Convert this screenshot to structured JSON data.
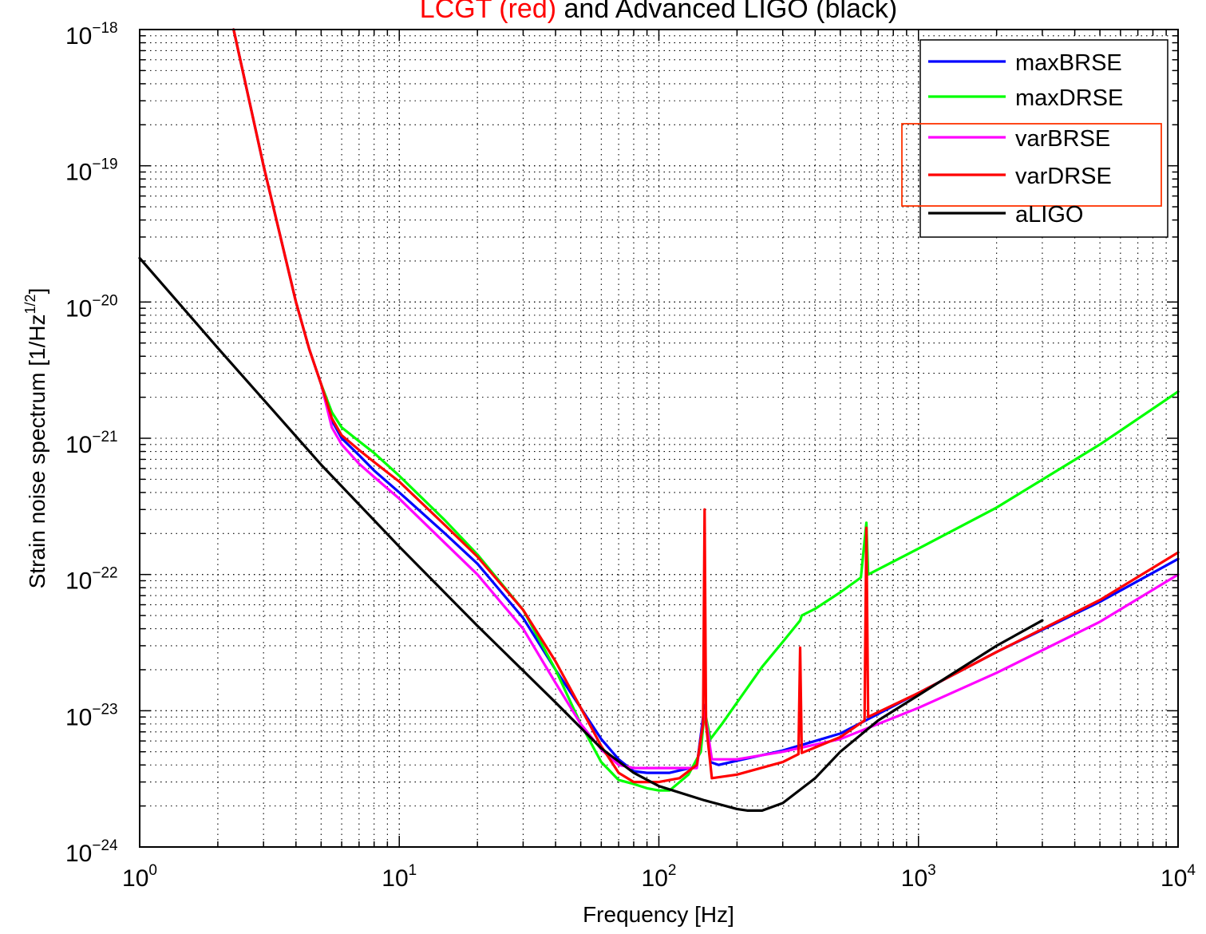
{
  "chart_data": {
    "type": "line",
    "title": {
      "part1": "LCGT (red)",
      "part1_color": "#ff0000",
      "part2": " and Advanced LIGO (black)",
      "part2_color": "#000000"
    },
    "xlabel": "Frequency [Hz]",
    "ylabel": "Strain noise spectrum [1/Hz",
    "ylabel_exp": "1/2",
    "ylabel_close": "]",
    "xscale": "log",
    "yscale": "log",
    "xlim": [
      1,
      10000
    ],
    "ylim": [
      1e-24,
      1e-18
    ],
    "grid": true,
    "legend_position": "top-right",
    "x_ticks": [
      {
        "base": "10",
        "exp": "0"
      },
      {
        "base": "10",
        "exp": "1"
      },
      {
        "base": "10",
        "exp": "2"
      },
      {
        "base": "10",
        "exp": "3"
      },
      {
        "base": "10",
        "exp": "4"
      }
    ],
    "y_ticks": [
      {
        "base": "10",
        "exp": "−24"
      },
      {
        "base": "10",
        "exp": "−23"
      },
      {
        "base": "10",
        "exp": "−22"
      },
      {
        "base": "10",
        "exp": "−21"
      },
      {
        "base": "10",
        "exp": "−20"
      },
      {
        "base": "10",
        "exp": "−19"
      },
      {
        "base": "10",
        "exp": "−18"
      }
    ],
    "series": [
      {
        "name": "maxBRSE",
        "color": "#0000ff",
        "points": [
          [
            2.3,
            1e-18
          ],
          [
            3,
            1e-19
          ],
          [
            4,
            1e-20
          ],
          [
            4.5,
            4.5e-21
          ],
          [
            5,
            2.5e-21
          ],
          [
            5.5,
            1.35e-21
          ],
          [
            6,
            1e-21
          ],
          [
            7,
            7.5e-22
          ],
          [
            8,
            5.8e-22
          ],
          [
            10,
            4e-22
          ],
          [
            15,
            2e-22
          ],
          [
            20,
            1.2e-22
          ],
          [
            30,
            4.8e-23
          ],
          [
            40,
            2e-23
          ],
          [
            50,
            1.05e-23
          ],
          [
            60,
            6.2e-24
          ],
          [
            70,
            4.4e-24
          ],
          [
            80,
            3.6e-24
          ],
          [
            90,
            3.5e-24
          ],
          [
            100,
            3.5e-24
          ],
          [
            110,
            3.5e-24
          ],
          [
            140,
            3.9e-24
          ],
          [
            150,
            1.1e-23
          ],
          [
            158,
            4.2e-24
          ],
          [
            170,
            4e-24
          ],
          [
            200,
            4.3e-24
          ],
          [
            300,
            5.1e-24
          ],
          [
            500,
            6.8e-24
          ],
          [
            1000,
            1.35e-23
          ],
          [
            2000,
            2.7e-23
          ],
          [
            5000,
            6.3e-23
          ],
          [
            10000,
            1.3e-22
          ]
        ]
      },
      {
        "name": "maxDRSE",
        "color": "#00ff00",
        "points": [
          [
            2.3,
            1e-18
          ],
          [
            3,
            1e-19
          ],
          [
            4,
            1e-20
          ],
          [
            4.5,
            4.5e-21
          ],
          [
            5,
            2.5e-21
          ],
          [
            5.5,
            1.55e-21
          ],
          [
            6,
            1.2e-21
          ],
          [
            7,
            9.5e-22
          ],
          [
            8,
            7.8e-22
          ],
          [
            10,
            5.3e-22
          ],
          [
            15,
            2.5e-22
          ],
          [
            20,
            1.4e-22
          ],
          [
            30,
            5.5e-23
          ],
          [
            40,
            2e-23
          ],
          [
            50,
            8e-24
          ],
          [
            60,
            4.2e-24
          ],
          [
            70,
            3.1e-24
          ],
          [
            80,
            2.9e-24
          ],
          [
            90,
            2.7e-24
          ],
          [
            100,
            2.6e-24
          ],
          [
            110,
            2.6e-24
          ],
          [
            130,
            3.4e-24
          ],
          [
            145,
            5e-24
          ],
          [
            150,
            1e-23
          ],
          [
            158,
            6.2e-24
          ],
          [
            175,
            8e-24
          ],
          [
            200,
            1.15e-23
          ],
          [
            250,
            2.1e-23
          ],
          [
            300,
            3.2e-23
          ],
          [
            350,
            4.6e-23
          ],
          [
            355,
            5e-23
          ],
          [
            400,
            5.6e-23
          ],
          [
            500,
            7.4e-23
          ],
          [
            600,
            9.5e-23
          ],
          [
            630,
            2.4e-22
          ],
          [
            640,
            1e-22
          ],
          [
            1000,
            1.55e-22
          ],
          [
            2000,
            3.1e-22
          ],
          [
            5000,
            9e-22
          ],
          [
            10000,
            2.2e-21
          ]
        ]
      },
      {
        "name": "varBRSE",
        "color": "#ff00ff",
        "points": [
          [
            2.3,
            1e-18
          ],
          [
            3,
            1e-19
          ],
          [
            4,
            1e-20
          ],
          [
            4.5,
            4.5e-21
          ],
          [
            5,
            2.5e-21
          ],
          [
            5.5,
            1.2e-21
          ],
          [
            6,
            9e-22
          ],
          [
            7,
            6.5e-22
          ],
          [
            8,
            5.2e-22
          ],
          [
            10,
            3.6e-22
          ],
          [
            15,
            1.7e-22
          ],
          [
            20,
            1e-22
          ],
          [
            30,
            4e-23
          ],
          [
            40,
            1.6e-23
          ],
          [
            50,
            8e-24
          ],
          [
            60,
            5.2e-24
          ],
          [
            70,
            4e-24
          ],
          [
            80,
            3.8e-24
          ],
          [
            100,
            3.8e-24
          ],
          [
            140,
            3.8e-24
          ],
          [
            150,
            1e-23
          ],
          [
            160,
            4.4e-24
          ],
          [
            200,
            4.4e-24
          ],
          [
            300,
            5e-24
          ],
          [
            500,
            6.2e-24
          ],
          [
            1000,
            1.05e-23
          ],
          [
            2000,
            1.9e-23
          ],
          [
            5000,
            4.5e-23
          ],
          [
            10000,
            1e-22
          ]
        ]
      },
      {
        "name": "varDRSE",
        "color": "#ff0000",
        "points": [
          [
            2.3,
            1e-18
          ],
          [
            3,
            1e-19
          ],
          [
            4,
            1e-20
          ],
          [
            4.5,
            4.5e-21
          ],
          [
            5,
            2.5e-21
          ],
          [
            5.5,
            1.4e-21
          ],
          [
            6,
            1.05e-21
          ],
          [
            7,
            8.2e-22
          ],
          [
            8,
            6.7e-22
          ],
          [
            10,
            4.8e-22
          ],
          [
            15,
            2.3e-22
          ],
          [
            20,
            1.35e-22
          ],
          [
            30,
            5.5e-23
          ],
          [
            40,
            2.3e-23
          ],
          [
            50,
            1.05e-23
          ],
          [
            60,
            5.5e-24
          ],
          [
            70,
            3.5e-24
          ],
          [
            80,
            3e-24
          ],
          [
            90,
            3e-24
          ],
          [
            100,
            3e-24
          ],
          [
            120,
            3.2e-24
          ],
          [
            140,
            4e-24
          ],
          [
            148,
            8e-24
          ],
          [
            150,
            3e-22
          ],
          [
            152,
            8e-24
          ],
          [
            160,
            3.2e-24
          ],
          [
            200,
            3.4e-24
          ],
          [
            300,
            4.2e-24
          ],
          [
            345,
            4.8e-24
          ],
          [
            350,
            2.9e-23
          ],
          [
            355,
            4.9e-24
          ],
          [
            500,
            6.4e-24
          ],
          [
            620,
            8.5e-24
          ],
          [
            630,
            2.2e-22
          ],
          [
            640,
            9e-24
          ],
          [
            1000,
            1.35e-23
          ],
          [
            2000,
            2.7e-23
          ],
          [
            5000,
            6.5e-23
          ],
          [
            10000,
            1.45e-22
          ]
        ]
      },
      {
        "name": "aLIGO",
        "color": "#000000",
        "points": [
          [
            1,
            2.1e-20
          ],
          [
            2,
            4.6e-21
          ],
          [
            5,
            6.4e-22
          ],
          [
            10,
            1.6e-22
          ],
          [
            20,
            4.2e-23
          ],
          [
            40,
            1.15e-23
          ],
          [
            60,
            5.3e-24
          ],
          [
            80,
            3.5e-24
          ],
          [
            100,
            2.8e-24
          ],
          [
            150,
            2.2e-24
          ],
          [
            200,
            1.9e-24
          ],
          [
            220,
            1.85e-24
          ],
          [
            250,
            1.85e-24
          ],
          [
            300,
            2.1e-24
          ],
          [
            400,
            3.2e-24
          ],
          [
            500,
            5e-24
          ],
          [
            700,
            8.5e-24
          ],
          [
            1000,
            1.3e-23
          ],
          [
            2000,
            3e-23
          ],
          [
            3000,
            4.6e-23
          ]
        ]
      }
    ]
  }
}
